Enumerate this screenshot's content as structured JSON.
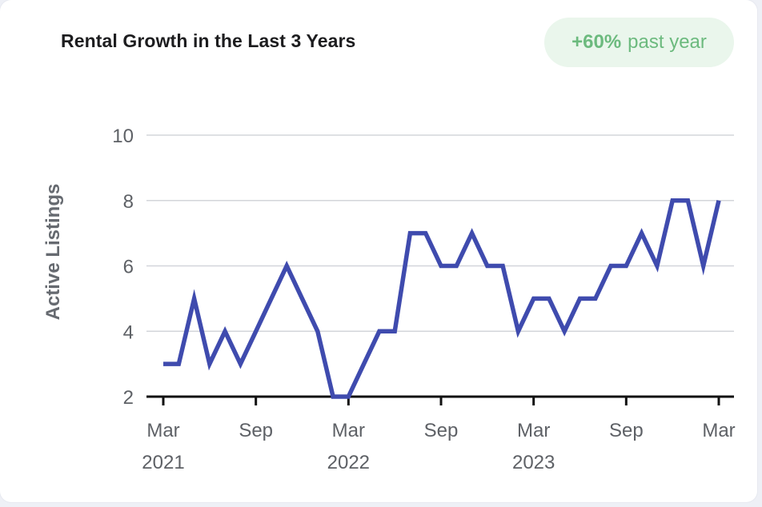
{
  "card": {
    "title": "Rental Growth in the Last 3 Years",
    "badge": {
      "value": "+60%",
      "text": "past year",
      "color": "#6cba7e",
      "background": "#eaf6ec"
    }
  },
  "chart_data": {
    "type": "line",
    "title": "Rental Growth in the Last 3 Years",
    "xlabel": "",
    "ylabel": "Active Listings",
    "ylim": [
      2,
      10
    ],
    "yticks": [
      2,
      4,
      6,
      8,
      10
    ],
    "xlim": [
      "2021-03",
      "2024-03"
    ],
    "xticks": [
      {
        "month": "Mar",
        "year": "2021",
        "date": "2021-03"
      },
      {
        "month": "Sep",
        "year": "",
        "date": "2021-09"
      },
      {
        "month": "Mar",
        "year": "2022",
        "date": "2022-03"
      },
      {
        "month": "Sep",
        "year": "",
        "date": "2022-09"
      },
      {
        "month": "Mar",
        "year": "2023",
        "date": "2023-03"
      },
      {
        "month": "Sep",
        "year": "",
        "date": "2023-09"
      },
      {
        "month": "Mar",
        "year": "",
        "date": "2024-03"
      }
    ],
    "grid": true,
    "line_color": "#3f4bae",
    "series": [
      {
        "x": [
          "2021-03",
          "2021-04",
          "2021-05",
          "2021-06",
          "2021-07",
          "2021-08",
          "2021-09",
          "2021-10",
          "2021-11",
          "2021-12",
          "2022-01",
          "2022-02",
          "2022-03",
          "2022-04",
          "2022-05",
          "2022-06",
          "2022-07",
          "2022-08",
          "2022-09",
          "2022-10",
          "2022-11",
          "2022-12",
          "2023-01",
          "2023-02",
          "2023-03",
          "2023-04",
          "2023-05",
          "2023-06",
          "2023-07",
          "2023-08",
          "2023-09",
          "2023-10",
          "2023-11",
          "2023-12",
          "2024-01",
          "2024-02",
          "2024-03"
        ],
        "values": [
          3,
          3,
          5,
          3,
          4,
          3,
          4,
          5,
          6,
          5,
          4,
          2,
          2,
          3,
          4,
          4,
          7,
          7,
          6,
          6,
          7,
          6,
          6,
          4,
          5,
          5,
          4,
          5,
          5,
          6,
          6,
          7,
          6,
          8,
          8,
          6,
          8
        ]
      }
    ]
  }
}
